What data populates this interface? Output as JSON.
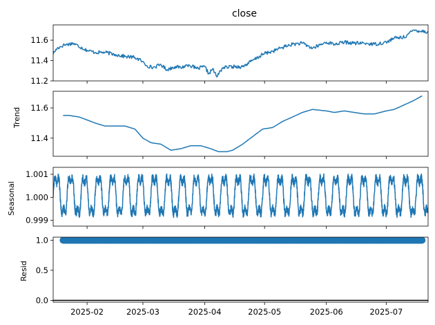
{
  "chart_data": {
    "type": "line",
    "title": "close",
    "line_color": "#1f77b4",
    "x_ticks": [
      "2025-02",
      "2025-03",
      "2025-04",
      "2025-05",
      "2025-06",
      "2025-07"
    ],
    "xlim": [
      "2025-01-15",
      "2025-07-22"
    ],
    "grid": false,
    "panels": [
      {
        "name": "close",
        "ylabel": "",
        "ylim": [
          11.2,
          11.75
        ],
        "yticks": [
          11.2,
          11.4,
          11.6
        ],
        "kind": "line",
        "x": [
          "2025-01-15",
          "2025-01-17",
          "2025-01-20",
          "2025-01-25",
          "2025-02-01",
          "2025-02-05",
          "2025-02-10",
          "2025-02-15",
          "2025-02-20",
          "2025-02-25",
          "2025-02-28",
          "2025-03-03",
          "2025-03-06",
          "2025-03-10",
          "2025-03-13",
          "2025-03-17",
          "2025-03-20",
          "2025-03-24",
          "2025-03-28",
          "2025-04-01",
          "2025-04-03",
          "2025-04-05",
          "2025-04-07",
          "2025-04-10",
          "2025-04-15",
          "2025-04-20",
          "2025-04-25",
          "2025-05-01",
          "2025-05-05",
          "2025-05-10",
          "2025-05-15",
          "2025-05-20",
          "2025-05-25",
          "2025-06-01",
          "2025-06-05",
          "2025-06-10",
          "2025-06-15",
          "2025-06-20",
          "2025-06-25",
          "2025-07-01",
          "2025-07-05",
          "2025-07-10",
          "2025-07-15",
          "2025-07-22"
        ],
        "y": [
          11.47,
          11.52,
          11.55,
          11.57,
          11.5,
          11.48,
          11.48,
          11.46,
          11.44,
          11.43,
          11.4,
          11.35,
          11.33,
          11.36,
          11.31,
          11.34,
          11.33,
          11.36,
          11.32,
          11.34,
          11.27,
          11.32,
          11.24,
          11.33,
          11.34,
          11.34,
          11.4,
          11.47,
          11.49,
          11.53,
          11.56,
          11.57,
          11.52,
          11.58,
          11.56,
          11.58,
          11.57,
          11.57,
          11.56,
          11.58,
          11.62,
          11.63,
          11.7,
          11.68
        ]
      },
      {
        "name": "trend",
        "ylabel": "Trend",
        "ylim": [
          11.28,
          11.71
        ],
        "yticks": [
          11.4,
          11.6
        ],
        "kind": "line",
        "x": [
          "2025-01-20",
          "2025-01-23",
          "2025-01-28",
          "2025-02-05",
          "2025-02-10",
          "2025-02-15",
          "2025-02-20",
          "2025-02-25",
          "2025-03-01",
          "2025-03-05",
          "2025-03-10",
          "2025-03-15",
          "2025-03-20",
          "2025-03-25",
          "2025-03-30",
          "2025-04-04",
          "2025-04-08",
          "2025-04-12",
          "2025-04-15",
          "2025-04-20",
          "2025-04-25",
          "2025-04-30",
          "2025-05-05",
          "2025-05-10",
          "2025-05-15",
          "2025-05-20",
          "2025-05-25",
          "2025-06-01",
          "2025-06-05",
          "2025-06-10",
          "2025-06-15",
          "2025-06-20",
          "2025-06-25",
          "2025-07-01",
          "2025-07-05",
          "2025-07-10",
          "2025-07-15",
          "2025-07-19"
        ],
        "y": [
          11.55,
          11.55,
          11.54,
          11.5,
          11.48,
          11.48,
          11.48,
          11.46,
          11.4,
          11.37,
          11.36,
          11.32,
          11.33,
          11.35,
          11.35,
          11.33,
          11.31,
          11.31,
          11.32,
          11.36,
          11.41,
          11.46,
          11.47,
          11.51,
          11.54,
          11.57,
          11.59,
          11.58,
          11.57,
          11.58,
          11.57,
          11.56,
          11.56,
          11.58,
          11.59,
          11.62,
          11.65,
          11.68
        ]
      },
      {
        "name": "seasonal",
        "ylabel": "Seasonal",
        "ylim": [
          0.99875,
          1.0013
        ],
        "yticks": [
          0.999,
          1.0,
          1.001
        ],
        "kind": "oscillation",
        "period_days": 7,
        "amplitude": 0.0011
      },
      {
        "name": "resid",
        "ylabel": "Resid",
        "ylim": [
          -0.03,
          1.05
        ],
        "yticks": [
          0.0,
          0.5,
          1.0
        ],
        "kind": "scatter",
        "marker_value": 1.0,
        "baseline": 0.0,
        "x_range": [
          "2025-01-20",
          "2025-07-19"
        ]
      }
    ]
  },
  "labels": {
    "title": "close",
    "trend": "Trend",
    "seasonal": "Seasonal",
    "resid": "Resid"
  }
}
